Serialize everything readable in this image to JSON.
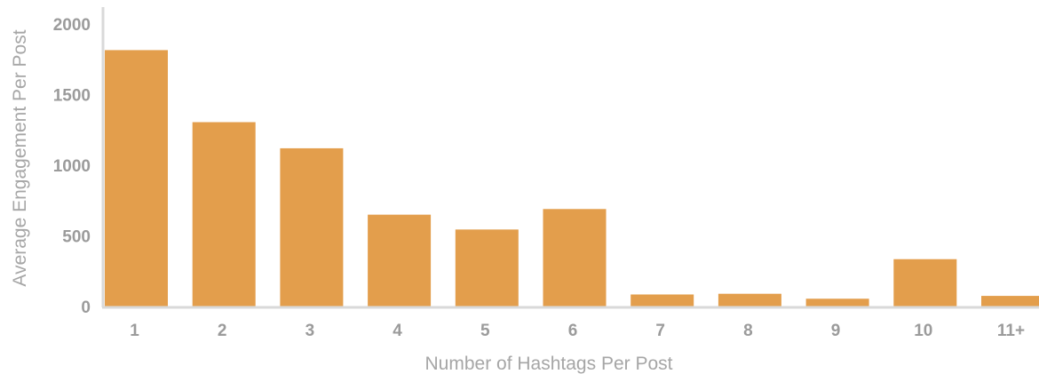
{
  "chart_data": {
    "type": "bar",
    "title": "",
    "xlabel": "Number of Hashtags Per Post",
    "ylabel": "Average Engagement Per Post",
    "categories": [
      "1",
      "2",
      "3",
      "4",
      "5",
      "6",
      "7",
      "8",
      "9",
      "10",
      "11+"
    ],
    "values": [
      1815,
      1305,
      1120,
      650,
      545,
      690,
      85,
      90,
      55,
      335,
      75
    ],
    "ylim": [
      0,
      2000
    ],
    "yticks": [
      "0",
      "500",
      "1000",
      "1500",
      "2000"
    ],
    "grid": false,
    "legend": "none",
    "bar_color": "#e39e4c",
    "axis_color": "#d9d9d9"
  }
}
